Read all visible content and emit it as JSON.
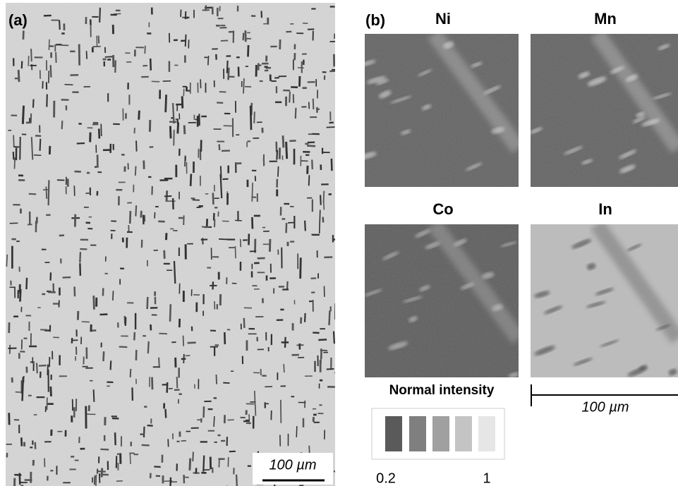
{
  "panel_a": {
    "label": "(a)",
    "scale_bar": "100 µm"
  },
  "panel_b": {
    "label": "(b)",
    "maps": [
      {
        "label": "Ni"
      },
      {
        "label": "Mn"
      },
      {
        "label": "Co"
      },
      {
        "label": "In"
      }
    ],
    "legend": {
      "title": "Normal intensity",
      "min_label": "0.2",
      "max_label": "1"
    },
    "scale_bar": "100 µm"
  }
}
